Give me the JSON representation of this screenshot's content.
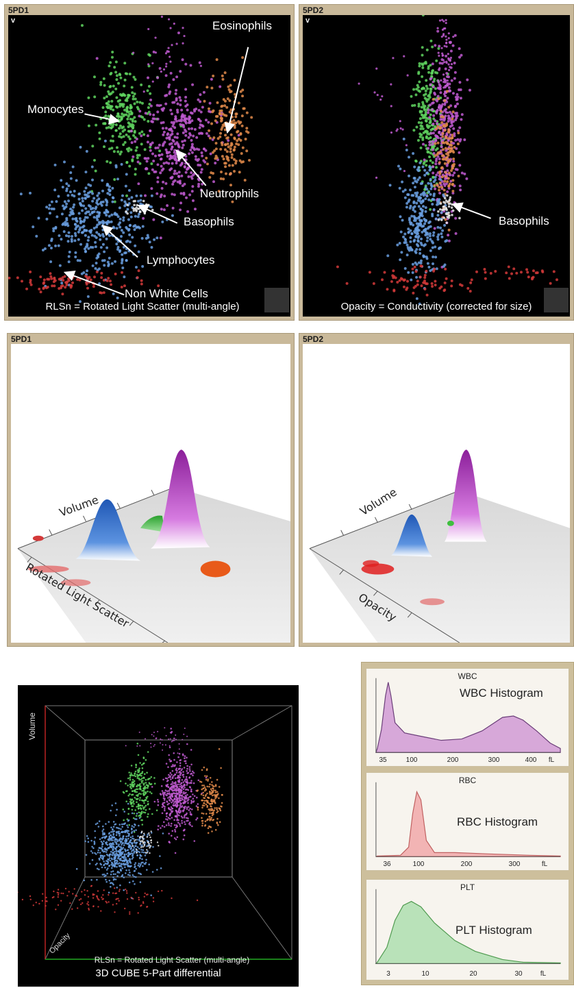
{
  "top": {
    "left": {
      "title": "5PD1",
      "v_label": "v",
      "footer": "RLSn = Rotated Light Scatter (multi-angle)",
      "labels": {
        "eosinophils": "Eosinophils",
        "monocytes": "Monocytes",
        "neutrophils": "Neutrophils",
        "basophils": "Basophils",
        "lymphocytes": "Lymphocytes",
        "non_white": "Non White Cells"
      }
    },
    "right": {
      "title": "5PD2",
      "v_label": "v",
      "footer": "Opacity = Conductivity (corrected for size)",
      "labels": {
        "basophils": "Basophils"
      }
    }
  },
  "middle": {
    "left": {
      "title": "5PD1",
      "axis_volume": "Volume",
      "axis_x": "Rotated Light Scatter"
    },
    "right": {
      "title": "5PD2",
      "axis_volume": "Volume",
      "axis_x": "Opacity"
    }
  },
  "cube": {
    "axis_volume": "Volume",
    "axis_opacity": "Opacity",
    "footer": "RLSn = Rotated Light Scatter (multi-angle)",
    "caption": "3D CUBE 5-Part differential"
  },
  "histograms": [
    {
      "title": "WBC",
      "label": "WBC Histogram",
      "color": "#d7a8d9",
      "stroke": "#6a3d78",
      "ticks": [
        "35",
        "100",
        "200",
        "300",
        "400",
        "fL"
      ]
    },
    {
      "title": "RBC",
      "label": "RBC Histogram",
      "color": "#f2b4b4",
      "stroke": "#c06060",
      "ticks": [
        "36",
        "100",
        "200",
        "300",
        "fL"
      ]
    },
    {
      "title": "PLT",
      "label": "PLT Histogram",
      "color": "#b9e2b9",
      "stroke": "#4f9a4f",
      "ticks": [
        "3",
        "10",
        "20",
        "30",
        "fL"
      ]
    }
  ],
  "colors": {
    "lymphocytes": "#6a9fe0",
    "monocytes": "#5fd35f",
    "neutrophils": "#c05ad0",
    "eosinophils": "#e08a4a",
    "basophils": "#e8e8e8",
    "non_white": "#d43a3a"
  }
}
